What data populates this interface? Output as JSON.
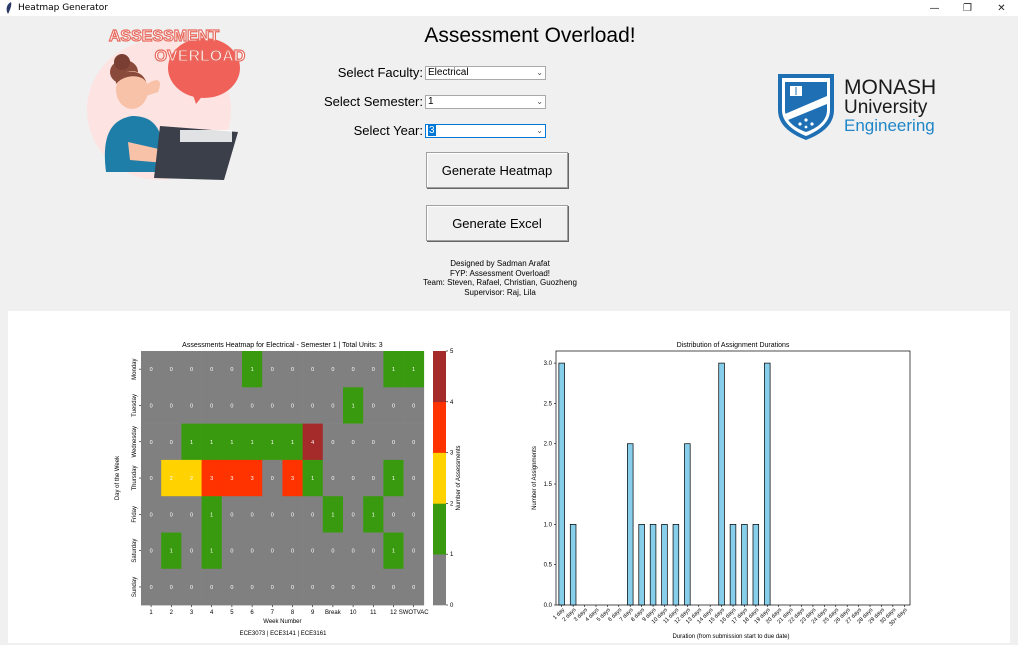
{
  "window": {
    "title": "Heatmap Generator",
    "controls": [
      "—",
      "❐",
      "✕"
    ]
  },
  "header": {
    "title": "Assessment Overload!",
    "logo_text": "ASSESSMENT OVERLOAD",
    "monash_line1": "MONASH",
    "monash_line2": "University",
    "monash_line3": "Engineering"
  },
  "form": {
    "faculty_label": "Select Faculty:",
    "faculty_value": "Electrical",
    "semester_label": "Select Semester:",
    "semester_value": "1",
    "year_label": "Select Year:",
    "year_value": "3"
  },
  "buttons": {
    "heatmap": "Generate Heatmap",
    "excel": "Generate Excel"
  },
  "credits": {
    "line1": "Designed by Sadman Arafat",
    "line2": "FYP: Assessment Overload!",
    "line3": "Team: Steven, Rafael, Christian, Guozheng",
    "line4": "Supervisor: Raj, Lila"
  },
  "chart_data": [
    {
      "type": "heatmap",
      "title": "Assessments Heatmap for Electrical - Semester 1 | Total Units: 3",
      "xlabel": "Week Number",
      "ylabel": "Day of the Week",
      "x": [
        "1",
        "2",
        "3",
        "4",
        "5",
        "6",
        "7",
        "8",
        "9",
        "Break",
        "10",
        "11",
        "12",
        "SWOTVAC"
      ],
      "y": [
        "Monday",
        "Tuesday",
        "Wednesday",
        "Thursday",
        "Friday",
        "Saturday",
        "Sunday"
      ],
      "values": [
        [
          0,
          0,
          0,
          0,
          0,
          1,
          0,
          0,
          0,
          0,
          0,
          0,
          1,
          1
        ],
        [
          0,
          0,
          0,
          0,
          0,
          0,
          0,
          0,
          0,
          0,
          1,
          0,
          0,
          0
        ],
        [
          0,
          0,
          1,
          1,
          1,
          1,
          1,
          1,
          4,
          0,
          0,
          0,
          0,
          0
        ],
        [
          0,
          2,
          2,
          3,
          3,
          3,
          0,
          3,
          1,
          0,
          0,
          0,
          1,
          0
        ],
        [
          0,
          0,
          0,
          1,
          0,
          0,
          0,
          0,
          0,
          1,
          0,
          1,
          0,
          0
        ],
        [
          0,
          1,
          0,
          1,
          0,
          0,
          0,
          0,
          0,
          0,
          0,
          0,
          1,
          0
        ],
        [
          0,
          0,
          0,
          0,
          0,
          0,
          0,
          0,
          0,
          0,
          0,
          0,
          0,
          0
        ]
      ],
      "colorbar": {
        "label": "Number of Assessments",
        "ticks": [
          0,
          1,
          2,
          3,
          4,
          5
        ],
        "colors": [
          "#808080",
          "#3a9a0f",
          "#ffd200",
          "#ff3300",
          "#a52a2a"
        ]
      },
      "footer": "ECE3073 | ECE3141 | ECE3161"
    },
    {
      "type": "bar",
      "title": "Distribution of Assignment Durations",
      "xlabel": "Duration (from submission start to due date)",
      "ylabel": "Number of Assignments",
      "categories": [
        "1 day",
        "2 days",
        "3 days",
        "4 days",
        "5 days",
        "6 days",
        "7 days",
        "8 days",
        "9 days",
        "10 days",
        "11 days",
        "12 days",
        "13 days",
        "14 days",
        "15 days",
        "16 days",
        "17 days",
        "18 days",
        "19 days",
        "20 days",
        "21 days",
        "22 days",
        "23 days",
        "24 days",
        "25 days",
        "26 days",
        "27 days",
        "28 days",
        "29 days",
        "30 days",
        "30+ days"
      ],
      "values": [
        3,
        1,
        0,
        0,
        0,
        0,
        2,
        1,
        1,
        1,
        1,
        2,
        0,
        0,
        3,
        1,
        1,
        1,
        3,
        0,
        0,
        0,
        0,
        0,
        0,
        0,
        0,
        0,
        0,
        0,
        0
      ],
      "yticks": [
        "0.0",
        "0.5",
        "1.0",
        "1.5",
        "2.0",
        "2.5",
        "3.0"
      ],
      "ylim": [
        0,
        3.15
      ],
      "bar_color": "#87ceeb",
      "grid": false
    }
  ]
}
